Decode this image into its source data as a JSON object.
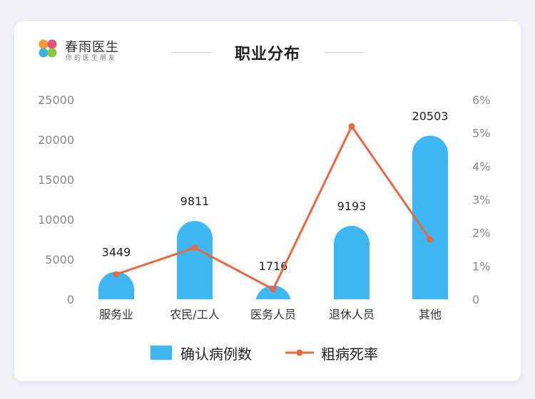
{
  "brand": {
    "name": "春雨医生",
    "tagline": "你的医生朋友",
    "logo_colors": [
      "#f29a2e",
      "#e84f7a",
      "#36b4e7",
      "#8cc63f"
    ]
  },
  "chart_data": {
    "type": "bar",
    "title": "职业分布",
    "categories": [
      "服务业",
      "农民/工人",
      "医务人员",
      "退休人员",
      "其他"
    ],
    "series": [
      {
        "name": "确认病例数",
        "type": "bar",
        "axis": "left",
        "color": "#3db8f5",
        "values": [
          3449,
          9811,
          1716,
          9193,
          20503
        ],
        "value_labels": [
          "3449",
          "9811",
          "1716",
          "9193",
          "20503"
        ]
      },
      {
        "name": "粗病死率",
        "type": "line",
        "axis": "right",
        "color": "#e8683f",
        "values": [
          0.75,
          1.55,
          0.3,
          5.2,
          1.8
        ]
      }
    ],
    "y_left": {
      "min": 0,
      "max": 25000,
      "ticks": [
        0,
        5000,
        10000,
        15000,
        20000,
        25000
      ],
      "tick_labels": [
        "0",
        "5000",
        "10000",
        "15000",
        "20000",
        "25000"
      ]
    },
    "y_right": {
      "min": 0,
      "max": 6,
      "ticks": [
        0,
        1,
        2,
        3,
        4,
        5,
        6
      ],
      "tick_labels": [
        "0",
        "1%",
        "2%",
        "3%",
        "4%",
        "5%",
        "6%"
      ]
    },
    "grid": false,
    "legend": "bottom-center"
  },
  "legend": {
    "bar_label": "确认病例数",
    "line_label": "粗病死率"
  }
}
